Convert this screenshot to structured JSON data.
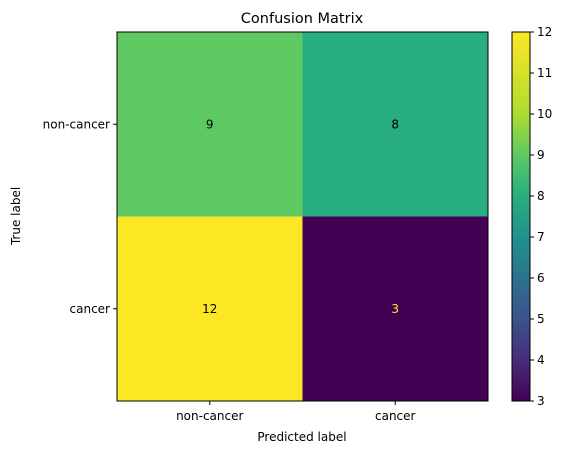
{
  "chart_data": {
    "type": "heatmap",
    "title": "Confusion Matrix",
    "xlabel": "Predicted label",
    "ylabel": "True label",
    "x_categories": [
      "non-cancer",
      "cancer"
    ],
    "y_categories": [
      "non-cancer",
      "cancer"
    ],
    "values": [
      [
        9,
        8
      ],
      [
        12,
        3
      ]
    ],
    "colormap": "viridis",
    "colorbar": {
      "range": [
        3,
        12
      ],
      "ticks": [
        "3",
        "4",
        "5",
        "6",
        "7",
        "8",
        "9",
        "10",
        "11",
        "12"
      ]
    },
    "cell_text_colors": {
      "on_light": "#000000",
      "on_dark": "#fde725"
    },
    "grid": false
  }
}
